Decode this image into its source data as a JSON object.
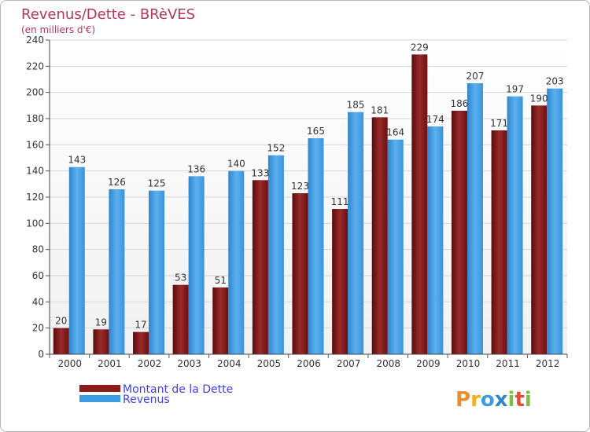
{
  "chart_data": {
    "type": "bar",
    "title": "Revenus/Dette - BRèVES",
    "subtitle": "(en milliers d'€)",
    "categories": [
      "2000",
      "2001",
      "2002",
      "2003",
      "2004",
      "2005",
      "2006",
      "2007",
      "2008",
      "2009",
      "2010",
      "2011",
      "2012"
    ],
    "series": [
      {
        "name": "Montant de la Dette",
        "color": "#8b1a1a",
        "values": [
          20,
          19,
          17,
          53,
          51,
          133,
          123,
          111,
          181,
          229,
          186,
          171,
          190
        ]
      },
      {
        "name": "Revenus",
        "color": "#3d9be0",
        "values": [
          143,
          126,
          125,
          136,
          140,
          152,
          165,
          185,
          164,
          174,
          207,
          197,
          203
        ]
      }
    ],
    "yticks": [
      0,
      20,
      40,
      60,
      80,
      100,
      120,
      140,
      160,
      180,
      200,
      220,
      240
    ],
    "ylim": [
      0,
      240
    ],
    "grid": true,
    "legend_position": "bottom-left"
  },
  "logo": {
    "text": "Proxiti"
  }
}
